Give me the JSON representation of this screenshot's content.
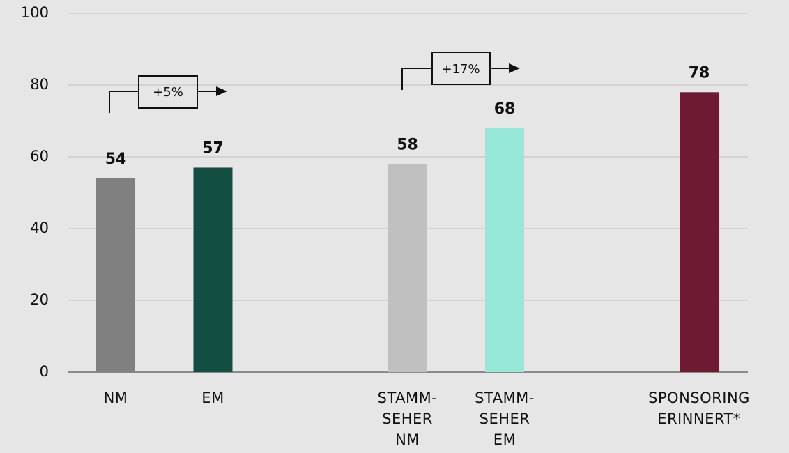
{
  "chart_data": {
    "type": "bar",
    "categories": [
      "NM",
      "EM",
      null,
      "STAMM-\nSEHER\nNM",
      "STAMM-\nSEHER\nEM",
      null,
      "SPONSORING\nERINNERT*"
    ],
    "values": [
      54,
      57,
      null,
      58,
      68,
      null,
      78
    ],
    "colors": [
      "#808080",
      "#134e43",
      null,
      "#c0c0c0",
      "#98e8da",
      null,
      "#6e1a33"
    ],
    "ylim": [
      0,
      100
    ],
    "yticks": [
      0,
      20,
      40,
      60,
      80,
      100
    ],
    "grid": true,
    "annotations": [
      "+5%",
      "+17%"
    ]
  }
}
